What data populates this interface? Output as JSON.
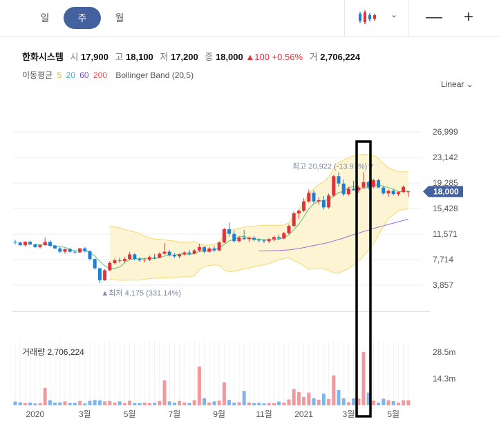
{
  "tabs": [
    "일",
    "주",
    "월"
  ],
  "active_tab": 1,
  "stock": {
    "name": "한화시스템",
    "open_label": "시",
    "open": "17,900",
    "high_label": "고",
    "high": "18,100",
    "low_label": "저",
    "low": "17,200",
    "close_label": "종",
    "close": "18,000",
    "change": "▲100",
    "change_pct": "+0.56%",
    "volume_label": "거",
    "volume": "2,706,224"
  },
  "indicators": {
    "ma_label": "이동평균",
    "ma_periods": [
      {
        "label": "5",
        "color": "#e3b33c"
      },
      {
        "label": "20",
        "color": "#2fb8c8"
      },
      {
        "label": "60",
        "color": "#7a4bc9"
      },
      {
        "label": "200",
        "color": "#e5484d"
      }
    ],
    "bb_label": "Bollinger Band (20,5)"
  },
  "scale_label": "Linear",
  "colors": {
    "up": "#e0323c",
    "down": "#1e7fd6",
    "band_fill": "#fdf4d3",
    "band_line": "#f5d86a",
    "ma20": "#5dbf74",
    "ma60": "#9c6ad8",
    "last_price_tag": "#44619f",
    "highlight_box": "#000000"
  },
  "chart_data": {
    "type": "candlestick",
    "price_ticks": [
      "26,999",
      "23,142",
      "19,285",
      "15,428",
      "11,571",
      "7,714",
      "3,857"
    ],
    "price_range": [
      0,
      30855
    ],
    "last_price": "18,000",
    "x_labels": [
      "2020",
      "3월",
      "5월",
      "7월",
      "9월",
      "11월",
      "2021",
      "3월",
      "5월"
    ],
    "high_marker": {
      "text": "최고 20,922 (-13.97%)▼"
    },
    "low_marker": {
      "text": "▲최저 4,175 (331.14%)"
    },
    "volume_title": "거래량 2,706,224",
    "volume_ticks": [
      "28.5m",
      "14.3m"
    ],
    "volume_range": [
      0,
      34000000
    ],
    "candles": [
      [
        10400,
        10700,
        10000,
        10300
      ],
      [
        10300,
        10400,
        9800,
        9900
      ],
      [
        9900,
        10500,
        9700,
        10400
      ],
      [
        10400,
        10600,
        9900,
        10000
      ],
      [
        10000,
        10100,
        9500,
        9600
      ],
      [
        9600,
        10000,
        9400,
        9900
      ],
      [
        9900,
        11000,
        9800,
        10400
      ],
      [
        10400,
        10600,
        9600,
        9800
      ],
      [
        9800,
        9900,
        9300,
        9400
      ],
      [
        9400,
        9600,
        8700,
        8900
      ],
      [
        8900,
        9400,
        8600,
        9300
      ],
      [
        9300,
        9500,
        8800,
        8900
      ],
      [
        8900,
        9100,
        8600,
        8800
      ],
      [
        8800,
        9500,
        8700,
        9400
      ],
      [
        9400,
        9600,
        8800,
        9000
      ],
      [
        9000,
        9100,
        7600,
        7800
      ],
      [
        7800,
        7900,
        6200,
        6400
      ],
      [
        6400,
        6500,
        4175,
        4600
      ],
      [
        4600,
        6300,
        4500,
        6100
      ],
      [
        6100,
        7500,
        6000,
        7200
      ],
      [
        7200,
        7900,
        7000,
        7600
      ],
      [
        7600,
        8000,
        7200,
        7500
      ],
      [
        7500,
        8100,
        7300,
        7800
      ],
      [
        7800,
        8900,
        7700,
        8500
      ],
      [
        8500,
        8700,
        7600,
        7800
      ],
      [
        7800,
        8100,
        7400,
        7600
      ],
      [
        7600,
        7900,
        7300,
        7700
      ],
      [
        7700,
        8300,
        7500,
        8100
      ],
      [
        8100,
        8600,
        7800,
        8000
      ],
      [
        8000,
        8800,
        7900,
        8600
      ],
      [
        8600,
        10200,
        8500,
        8900
      ],
      [
        8900,
        9200,
        8200,
        8400
      ],
      [
        8400,
        8700,
        8000,
        8200
      ],
      [
        8200,
        8600,
        7900,
        8500
      ],
      [
        8500,
        9000,
        8300,
        8800
      ],
      [
        8800,
        9200,
        8400,
        8600
      ],
      [
        8600,
        9300,
        8500,
        9100
      ],
      [
        9100,
        10100,
        8900,
        9600
      ],
      [
        9600,
        9700,
        8700,
        8900
      ],
      [
        8900,
        9600,
        8800,
        9400
      ],
      [
        9400,
        9800,
        8900,
        9100
      ],
      [
        9100,
        10400,
        9000,
        10300
      ],
      [
        10300,
        12500,
        10200,
        12300
      ],
      [
        12300,
        13300,
        11200,
        11600
      ],
      [
        11600,
        12000,
        10300,
        10500
      ],
      [
        10500,
        11300,
        10300,
        11000
      ],
      [
        11000,
        12200,
        10700,
        10800
      ],
      [
        10800,
        11200,
        10400,
        11000
      ],
      [
        11000,
        11300,
        10500,
        10700
      ],
      [
        10700,
        10900,
        10300,
        10600
      ],
      [
        10600,
        10800,
        10200,
        10500
      ],
      [
        10500,
        11000,
        10200,
        10800
      ],
      [
        10800,
        11300,
        10500,
        11100
      ],
      [
        11100,
        11500,
        10700,
        10900
      ],
      [
        10900,
        11900,
        10800,
        11700
      ],
      [
        11700,
        13000,
        11500,
        12800
      ],
      [
        12800,
        15000,
        12600,
        14700
      ],
      [
        14700,
        15300,
        13900,
        15100
      ],
      [
        15100,
        17000,
        14900,
        16500
      ],
      [
        16500,
        18300,
        16300,
        17800
      ],
      [
        17800,
        18200,
        16200,
        16500
      ],
      [
        16500,
        17100,
        16000,
        16700
      ],
      [
        16700,
        17300,
        15300,
        15600
      ],
      [
        15600,
        17700,
        15400,
        17400
      ],
      [
        17400,
        20500,
        17200,
        20300
      ],
      [
        20300,
        20900,
        18700,
        19200
      ],
      [
        19200,
        19800,
        17300,
        17600
      ],
      [
        17600,
        18700,
        17400,
        18400
      ],
      [
        18400,
        19600,
        18100,
        18200
      ],
      [
        18200,
        18900,
        17800,
        18600
      ],
      [
        18600,
        20922,
        18400,
        19400
      ],
      [
        19400,
        19600,
        18300,
        18700
      ],
      [
        18700,
        19900,
        18500,
        19700
      ],
      [
        19700,
        19900,
        18500,
        18600
      ],
      [
        18600,
        18800,
        17500,
        17700
      ],
      [
        17700,
        18300,
        17200,
        18100
      ],
      [
        18100,
        18400,
        17400,
        17600
      ],
      [
        17600,
        18000,
        17300,
        17900
      ],
      [
        17900,
        18900,
        17800,
        18700
      ],
      [
        17900,
        18100,
        17200,
        18000
      ]
    ],
    "volumes": [
      2000000,
      1600000,
      1100000,
      1400000,
      1000000,
      1200000,
      9300000,
      2700000,
      1400000,
      1500000,
      2100000,
      1200000,
      1300000,
      2300000,
      1000000,
      2400000,
      2800000,
      2600000,
      2100000,
      2300000,
      1400000,
      2100000,
      1200000,
      2400000,
      1200000,
      1100000,
      1400000,
      1100000,
      1300000,
      2300000,
      13300000,
      2100000,
      1400000,
      2300000,
      1500000,
      1200000,
      2700000,
      20800000,
      3800000,
      1500000,
      2100000,
      2500000,
      12300000,
      2900000,
      1400000,
      1600000,
      7700000,
      1500000,
      1100000,
      1300000,
      1000000,
      1200000,
      1200000,
      2000000,
      1400000,
      3100000,
      8700000,
      7100000,
      4500000,
      6800000,
      3800000,
      3000000,
      6200000,
      3300000,
      16000000,
      8200000,
      3700000,
      1600000,
      3700000,
      3600000,
      28500000,
      6800000,
      2500000,
      1400000,
      3500000,
      2700000,
      2200000,
      1400000,
      2700000,
      2700000
    ]
  }
}
